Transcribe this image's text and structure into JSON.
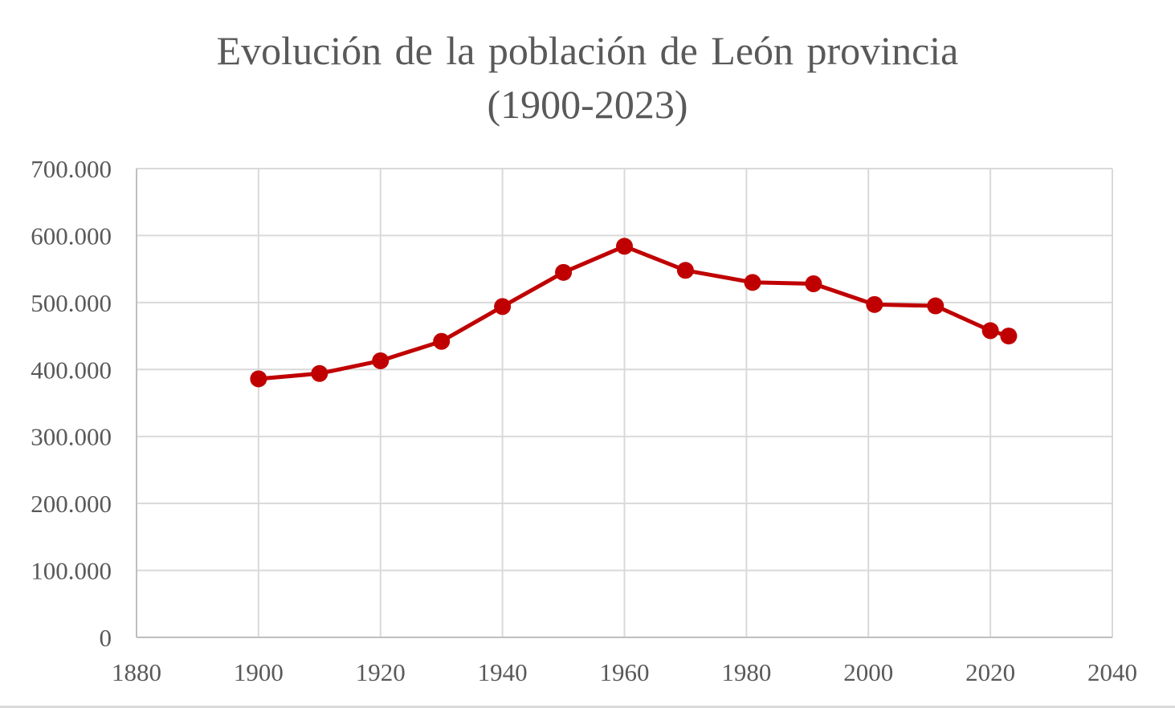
{
  "chart_data": {
    "type": "scatter",
    "title_lines": [
      "Evolución de la población de León provincia",
      "(1900-2023)"
    ],
    "xlabel": "",
    "ylabel": "",
    "xlim": [
      1880,
      2040
    ],
    "ylim": [
      0,
      700000
    ],
    "x_ticks": [
      {
        "value": 1880,
        "label": "1880"
      },
      {
        "value": 1900,
        "label": "1900"
      },
      {
        "value": 1920,
        "label": "1920"
      },
      {
        "value": 1940,
        "label": "1940"
      },
      {
        "value": 1960,
        "label": "1960"
      },
      {
        "value": 1980,
        "label": "1980"
      },
      {
        "value": 2000,
        "label": "2000"
      },
      {
        "value": 2020,
        "label": "2020"
      },
      {
        "value": 2040,
        "label": "2040"
      }
    ],
    "y_ticks": [
      {
        "value": 0,
        "label": "0"
      },
      {
        "value": 100000,
        "label": "100.000"
      },
      {
        "value": 200000,
        "label": "200.000"
      },
      {
        "value": 300000,
        "label": "300.000"
      },
      {
        "value": 400000,
        "label": "400.000"
      },
      {
        "value": 500000,
        "label": "500.000"
      },
      {
        "value": 600000,
        "label": "600.000"
      },
      {
        "value": 700000,
        "label": "700.000"
      }
    ],
    "grid": true,
    "legend": "none",
    "series": [
      {
        "color": "#c00000",
        "marker": "circle",
        "line": true,
        "x": [
          1900,
          1910,
          1920,
          1930,
          1940,
          1950,
          1960,
          1970,
          1981,
          1991,
          2001,
          2011,
          2020,
          2023
        ],
        "y": [
          386000,
          394000,
          413000,
          442000,
          494000,
          545000,
          584000,
          548000,
          530000,
          528000,
          497000,
          495000,
          458000,
          450000
        ]
      }
    ]
  }
}
